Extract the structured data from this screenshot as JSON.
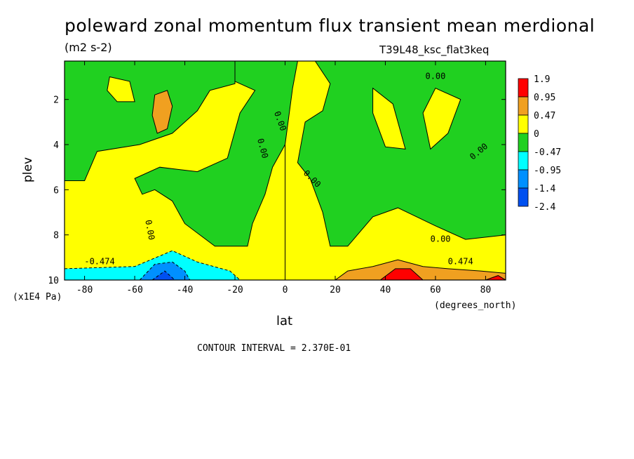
{
  "title": "poleward zonal momentum flux transient mean merdional",
  "units": "(m2 s-2)",
  "run_id": "T39L48_ksc_flat3keq",
  "contour_interval": "CONTOUR INTERVAL = 2.370E-01",
  "colors": {
    "red": "#ff0000",
    "orange": "#f0a020",
    "yellow": "#ffff00",
    "green": "#20d020",
    "cyan": "#00ffff",
    "blue_mid": "#0090ff",
    "blue_dark": "#0050f0"
  },
  "chart_data": {
    "type": "contour",
    "xlabel": "lat",
    "xunit": "(degrees_north)",
    "ylabel": "plev",
    "yunit": "(x1E4 Pa)",
    "xlim": [
      -88,
      88
    ],
    "ylim": [
      10,
      0.3
    ],
    "xticks": [
      "-80",
      "-60",
      "-40",
      "-20",
      "0",
      "20",
      "40",
      "60",
      "80"
    ],
    "xtick_values": [
      -80,
      -60,
      -40,
      -20,
      0,
      20,
      40,
      60,
      80
    ],
    "yticks": [
      "2",
      "4",
      "6",
      "8",
      "10"
    ],
    "ytick_values": [
      2,
      4,
      6,
      8,
      10
    ],
    "colorbar": {
      "labels": [
        "1.9",
        "0.95",
        "0.47",
        "0",
        "-0.47",
        "-0.95",
        "-1.4",
        "-2.4"
      ],
      "values": [
        1.9,
        0.95,
        0.47,
        0,
        -0.47,
        -0.95,
        -1.4,
        -2.4
      ],
      "colors": [
        "#ff0000",
        "#f0a020",
        "#ffff00",
        "#20d020",
        "#00ffff",
        "#0090ff",
        "#0050f0"
      ]
    },
    "contour_labels": [
      "0.00",
      "0.00",
      "0.00",
      "0.00",
      "0.00",
      "0.00",
      "0.00",
      "-0.474",
      "0.474"
    ],
    "regions": [
      {
        "level": "green",
        "outline": [
          [
            -88,
            0.3
          ],
          [
            -20,
            0.3
          ],
          [
            -20,
            1.3
          ],
          [
            -30,
            1.6
          ],
          [
            -35,
            2.5
          ],
          [
            -45,
            3.5
          ],
          [
            -58,
            4
          ],
          [
            -75,
            4.3
          ],
          [
            -80,
            5.6
          ],
          [
            -88,
            5.6
          ]
        ]
      },
      {
        "level": "green",
        "outline": [
          [
            -20,
            0.3
          ],
          [
            5,
            0.3
          ],
          [
            3,
            1.5
          ],
          [
            0,
            4
          ],
          [
            -5,
            5
          ],
          [
            -8,
            6.2
          ],
          [
            -13,
            7.5
          ],
          [
            -15,
            8.5
          ],
          [
            -28,
            8.5
          ],
          [
            -40,
            7.5
          ],
          [
            -45,
            6.5
          ],
          [
            -52,
            6
          ],
          [
            -57,
            6.2
          ],
          [
            -60,
            5.5
          ],
          [
            -50,
            5
          ],
          [
            -35,
            5.2
          ],
          [
            -23,
            4.6
          ],
          [
            -18,
            2.6
          ],
          [
            -12,
            1.6
          ],
          [
            -20,
            1.2
          ]
        ]
      },
      {
        "level": "green",
        "outline": [
          [
            12,
            0.3
          ],
          [
            88,
            0.3
          ],
          [
            88,
            8
          ],
          [
            72,
            8.2
          ],
          [
            60,
            7.6
          ],
          [
            45,
            6.8
          ],
          [
            35,
            7.2
          ],
          [
            25,
            8.5
          ],
          [
            18,
            8.5
          ],
          [
            15,
            7
          ],
          [
            10,
            5.5
          ],
          [
            5,
            4.8
          ],
          [
            8,
            3
          ],
          [
            15,
            2.5
          ],
          [
            18,
            1.3
          ]
        ]
      },
      {
        "level": "yellow",
        "outline": [
          [
            -70,
            1
          ],
          [
            -62,
            1.2
          ],
          [
            -60,
            2.1
          ],
          [
            -67,
            2.1
          ],
          [
            -71,
            1.6
          ]
        ]
      },
      {
        "level": "yellow",
        "outline": [
          [
            35,
            1.5
          ],
          [
            43,
            2.2
          ],
          [
            48,
            4.2
          ],
          [
            40,
            4.1
          ],
          [
            35,
            2.6
          ]
        ]
      },
      {
        "level": "yellow",
        "outline": [
          [
            60,
            1.5
          ],
          [
            70,
            2
          ],
          [
            65,
            3.5
          ],
          [
            58,
            4.2
          ],
          [
            55,
            2.6
          ]
        ]
      },
      {
        "level": "cyan",
        "outline": [
          [
            -88,
            9.5
          ],
          [
            -60,
            9.4
          ],
          [
            -45,
            8.7
          ],
          [
            -35,
            9.2
          ],
          [
            -22,
            9.6
          ],
          [
            -18,
            10
          ],
          [
            -88,
            10
          ]
        ]
      },
      {
        "level": "blue_mid",
        "outline": [
          [
            -58,
            10
          ],
          [
            -52,
            9.3
          ],
          [
            -45,
            9.2
          ],
          [
            -40,
            9.6
          ],
          [
            -38,
            10
          ]
        ]
      },
      {
        "level": "blue_dark",
        "outline": [
          [
            -53,
            10
          ],
          [
            -48,
            9.6
          ],
          [
            -44,
            10
          ]
        ]
      },
      {
        "level": "orange",
        "outline": [
          [
            -52,
            1.8
          ],
          [
            -47,
            1.6
          ],
          [
            -45,
            2.3
          ],
          [
            -47,
            3.3
          ],
          [
            -51,
            3.5
          ],
          [
            -53,
            2.7
          ]
        ]
      },
      {
        "level": "orange",
        "outline": [
          [
            20,
            10
          ],
          [
            25,
            9.6
          ],
          [
            35,
            9.4
          ],
          [
            45,
            9.1
          ],
          [
            55,
            9.4
          ],
          [
            65,
            9.5
          ],
          [
            78,
            9.6
          ],
          [
            88,
            9.7
          ],
          [
            88,
            10
          ]
        ]
      },
      {
        "level": "red",
        "outline": [
          [
            38,
            10
          ],
          [
            44,
            9.5
          ],
          [
            50,
            9.5
          ],
          [
            55,
            10
          ]
        ]
      },
      {
        "level": "red",
        "outline": [
          [
            80,
            10
          ],
          [
            85,
            9.8
          ],
          [
            88,
            10
          ]
        ]
      }
    ]
  }
}
